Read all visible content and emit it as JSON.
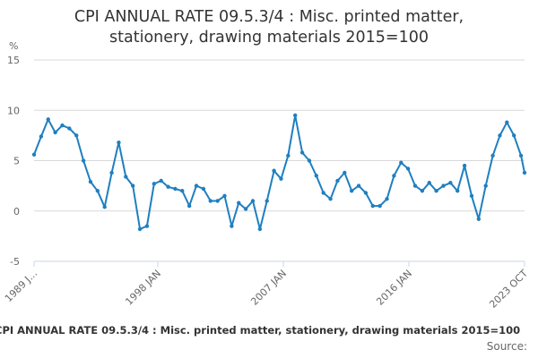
{
  "header": {
    "title_line1": "CPI ANNUAL RATE 09.5.3/4 : Misc. printed matter,",
    "title_line2": "stationery, drawing materials 2015=100"
  },
  "footer": {
    "title": "CPI ANNUAL RATE 09.5.3/4 : Misc. printed matter, stationery, drawing materials 2015=100",
    "source": "Source:"
  },
  "colors": {
    "series": "#1f7fc0",
    "grid": "#d8d8d8",
    "text": "#333333",
    "axis": "#ccd6eb"
  },
  "chart_data": {
    "type": "line",
    "title": "CPI ANNUAL RATE 09.5.3/4 : Misc. printed matter, stationery, drawing materials 2015=100",
    "ylabel": "%",
    "ylim": [
      -5,
      15
    ],
    "yticks": [
      -5,
      0,
      5,
      10,
      15
    ],
    "xlim": [
      "1989-01",
      "2023-10"
    ],
    "xticks": [
      "1989 J...",
      "1998 JAN",
      "2007 JAN",
      "2016 JAN",
      "2023 OCT"
    ],
    "grid": true,
    "legend": "none",
    "series": [
      {
        "x": [
          "1989-01",
          "1989-07",
          "1990-01",
          "1990-07",
          "1991-01",
          "1991-07",
          "1992-01",
          "1992-07",
          "1993-01",
          "1993-07",
          "1994-01",
          "1994-07",
          "1995-01",
          "1995-07",
          "1996-01",
          "1996-07",
          "1997-01",
          "1997-07",
          "1998-01",
          "1998-07",
          "1999-01",
          "1999-07",
          "2000-01",
          "2000-07",
          "2001-01",
          "2001-07",
          "2002-01",
          "2002-07",
          "2003-01",
          "2003-07",
          "2004-01",
          "2004-07",
          "2005-01",
          "2005-07",
          "2006-01",
          "2006-07",
          "2007-01",
          "2007-07",
          "2008-01",
          "2008-07",
          "2009-01",
          "2009-07",
          "2010-01",
          "2010-07",
          "2011-01",
          "2011-07",
          "2012-01",
          "2012-07",
          "2013-01",
          "2013-07",
          "2014-01",
          "2014-07",
          "2015-01",
          "2015-07",
          "2016-01",
          "2016-07",
          "2017-01",
          "2017-07",
          "2018-01",
          "2018-07",
          "2019-01",
          "2019-07",
          "2020-01",
          "2020-07",
          "2021-01",
          "2021-07",
          "2022-01",
          "2022-07",
          "2023-01",
          "2023-07",
          "2023-10"
        ],
        "values": [
          5.6,
          7.4,
          9.1,
          7.8,
          8.5,
          8.2,
          7.5,
          5.0,
          2.9,
          2.0,
          0.4,
          3.8,
          6.8,
          3.4,
          2.5,
          -1.8,
          -1.5,
          2.7,
          3.0,
          2.4,
          2.2,
          2.0,
          0.5,
          2.5,
          2.2,
          1.0,
          1.0,
          1.5,
          -1.5,
          0.8,
          0.2,
          1.0,
          -1.8,
          1.0,
          4.0,
          3.2,
          5.5,
          9.5,
          5.8,
          5.0,
          3.5,
          1.8,
          1.2,
          3.0,
          3.8,
          2.0,
          2.5,
          1.8,
          0.5,
          0.5,
          1.2,
          3.5,
          4.8,
          4.2,
          2.5,
          2.0,
          2.8,
          2.0,
          2.5,
          2.8,
          2.0,
          4.5,
          1.5,
          -0.8,
          2.5,
          5.5,
          7.5,
          8.8,
          7.5,
          5.5,
          3.8
        ]
      }
    ]
  }
}
